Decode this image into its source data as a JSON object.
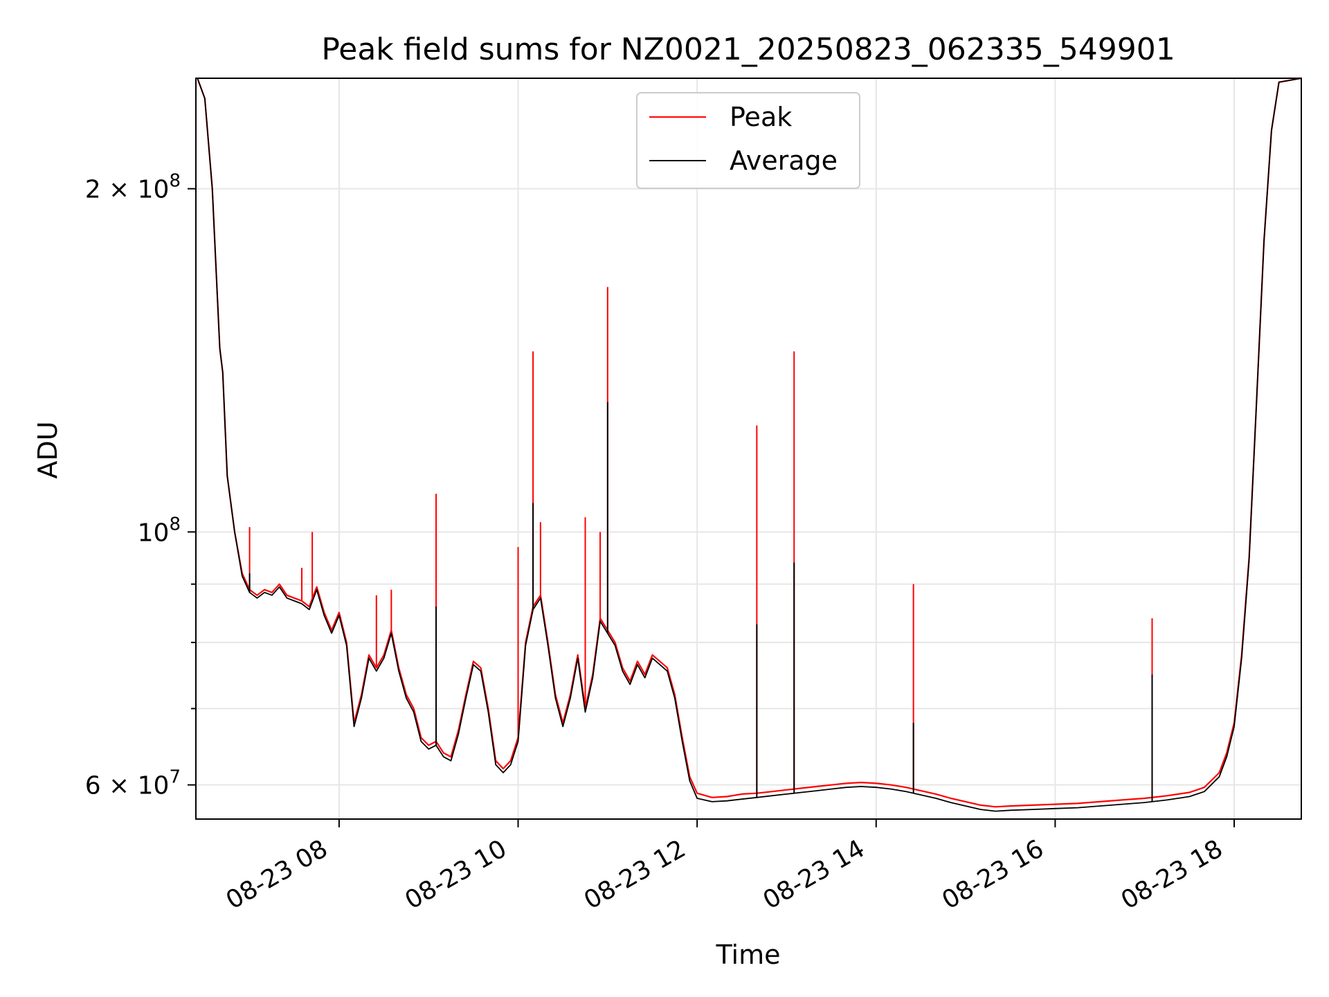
{
  "chart_data": {
    "type": "line",
    "title": "Peak field sums for NZ0021_20250823_062335_549901",
    "xlabel": "Time",
    "ylabel": "ADU",
    "y_scale": "log",
    "ylim": [
      56000000,
      250000000
    ],
    "xlim": [
      "08-23 06:24",
      "08-23 18:45"
    ],
    "grid": true,
    "legend_position": "top-center",
    "x_ticks": [
      {
        "t": "08-23 08:00",
        "label": "08-23 08"
      },
      {
        "t": "08-23 10:00",
        "label": "08-23 10"
      },
      {
        "t": "08-23 12:00",
        "label": "08-23 12"
      },
      {
        "t": "08-23 14:00",
        "label": "08-23 14"
      },
      {
        "t": "08-23 16:00",
        "label": "08-23 16"
      },
      {
        "t": "08-23 18:00",
        "label": "08-23 18"
      }
    ],
    "y_ticks": [
      {
        "v": 60000000,
        "base": "6",
        "exp": "7"
      },
      {
        "v": 100000000,
        "base": "",
        "exp": "8"
      },
      {
        "v": 200000000,
        "base": "2",
        "exp": "8"
      }
    ],
    "y_minor_ticks": [
      70000000,
      80000000,
      90000000
    ],
    "series": [
      {
        "name": "Peak",
        "color": "#ff0000",
        "points": [
          [
            "08-23 06:25",
            250000000
          ],
          [
            "08-23 06:30",
            240000000
          ],
          [
            "08-23 06:35",
            200000000
          ],
          [
            "08-23 06:40",
            145000000
          ],
          [
            "08-23 06:42",
            138000000
          ],
          [
            "08-23 06:45",
            112000000
          ],
          [
            "08-23 06:50",
            100000000
          ],
          [
            "08-23 06:55",
            92000000
          ],
          [
            "08-23 07:00",
            89000000
          ],
          [
            "08-23 07:05",
            88000000
          ],
          [
            "08-23 07:10",
            89000000
          ],
          [
            "08-23 07:15",
            88500000
          ],
          [
            "08-23 07:20",
            90000000
          ],
          [
            "08-23 07:25",
            88000000
          ],
          [
            "08-23 07:30",
            87500000
          ],
          [
            "08-23 07:35",
            87000000
          ],
          [
            "08-23 07:40",
            86000000
          ],
          [
            "08-23 07:45",
            89500000
          ],
          [
            "08-23 07:50",
            85000000
          ],
          [
            "08-23 07:55",
            82000000
          ],
          [
            "08-23 08:00",
            85000000
          ],
          [
            "08-23 08:05",
            80000000
          ],
          [
            "08-23 08:10",
            68000000
          ],
          [
            "08-23 08:15",
            72000000
          ],
          [
            "08-23 08:20",
            78000000
          ],
          [
            "08-23 08:25",
            76000000
          ],
          [
            "08-23 08:30",
            78000000
          ],
          [
            "08-23 08:35",
            82000000
          ],
          [
            "08-23 08:40",
            76000000
          ],
          [
            "08-23 08:45",
            72000000
          ],
          [
            "08-23 08:50",
            70000000
          ],
          [
            "08-23 08:55",
            66000000
          ],
          [
            "08-23 09:00",
            65000000
          ],
          [
            "08-23 09:05",
            65500000
          ],
          [
            "08-23 09:10",
            64000000
          ],
          [
            "08-23 09:15",
            63500000
          ],
          [
            "08-23 09:20",
            67000000
          ],
          [
            "08-23 09:25",
            72000000
          ],
          [
            "08-23 09:30",
            77000000
          ],
          [
            "08-23 09:35",
            76000000
          ],
          [
            "08-23 09:40",
            70000000
          ],
          [
            "08-23 09:45",
            63000000
          ],
          [
            "08-23 09:50",
            62000000
          ],
          [
            "08-23 09:55",
            63000000
          ],
          [
            "08-23 10:00",
            66000000
          ],
          [
            "08-23 10:05",
            80000000
          ],
          [
            "08-23 10:10",
            86000000
          ],
          [
            "08-23 10:15",
            88000000
          ],
          [
            "08-23 10:20",
            80000000
          ],
          [
            "08-23 10:25",
            72000000
          ],
          [
            "08-23 10:30",
            68000000
          ],
          [
            "08-23 10:35",
            72000000
          ],
          [
            "08-23 10:40",
            78000000
          ],
          [
            "08-23 10:45",
            70000000
          ],
          [
            "08-23 10:50",
            75000000
          ],
          [
            "08-23 10:55",
            84000000
          ],
          [
            "08-23 11:00",
            82000000
          ],
          [
            "08-23 11:05",
            80000000
          ],
          [
            "08-23 11:10",
            76000000
          ],
          [
            "08-23 11:15",
            74000000
          ],
          [
            "08-23 11:20",
            77000000
          ],
          [
            "08-23 11:25",
            75000000
          ],
          [
            "08-23 11:30",
            78000000
          ],
          [
            "08-23 11:35",
            77000000
          ],
          [
            "08-23 11:40",
            76000000
          ],
          [
            "08-23 11:45",
            72000000
          ],
          [
            "08-23 11:50",
            66000000
          ],
          [
            "08-23 11:55",
            61000000
          ],
          [
            "08-23 12:00",
            59000000
          ],
          [
            "08-23 12:10",
            58500000
          ],
          [
            "08-23 12:20",
            58600000
          ],
          [
            "08-23 12:30",
            58900000
          ],
          [
            "08-23 12:40",
            59000000
          ],
          [
            "08-23 12:50",
            59200000
          ],
          [
            "08-23 13:00",
            59400000
          ],
          [
            "08-23 13:10",
            59600000
          ],
          [
            "08-23 13:20",
            59800000
          ],
          [
            "08-23 13:30",
            60000000
          ],
          [
            "08-23 13:40",
            60200000
          ],
          [
            "08-23 13:50",
            60300000
          ],
          [
            "08-23 14:00",
            60200000
          ],
          [
            "08-23 14:10",
            60000000
          ],
          [
            "08-23 14:20",
            59700000
          ],
          [
            "08-23 14:30",
            59300000
          ],
          [
            "08-23 14:40",
            58900000
          ],
          [
            "08-23 14:50",
            58400000
          ],
          [
            "08-23 15:00",
            58000000
          ],
          [
            "08-23 15:10",
            57600000
          ],
          [
            "08-23 15:20",
            57400000
          ],
          [
            "08-23 15:30",
            57500000
          ],
          [
            "08-23 15:45",
            57600000
          ],
          [
            "08-23 16:00",
            57700000
          ],
          [
            "08-23 16:15",
            57800000
          ],
          [
            "08-23 16:30",
            58000000
          ],
          [
            "08-23 16:45",
            58200000
          ],
          [
            "08-23 17:00",
            58400000
          ],
          [
            "08-23 17:15",
            58700000
          ],
          [
            "08-23 17:30",
            59100000
          ],
          [
            "08-23 17:40",
            59700000
          ],
          [
            "08-23 17:50",
            61500000
          ],
          [
            "08-23 17:55",
            64000000
          ],
          [
            "08-23 18:00",
            68000000
          ],
          [
            "08-23 18:05",
            78000000
          ],
          [
            "08-23 18:10",
            95000000
          ],
          [
            "08-23 18:15",
            130000000
          ],
          [
            "08-23 18:20",
            180000000
          ],
          [
            "08-23 18:25",
            225000000
          ],
          [
            "08-23 18:30",
            248000000
          ],
          [
            "08-23 18:45",
            250000000
          ]
        ],
        "spikes": [
          [
            "08-23 07:00",
            101000000
          ],
          [
            "08-23 07:42",
            100000000
          ],
          [
            "08-23 07:35",
            93000000
          ],
          [
            "08-23 08:25",
            88000000
          ],
          [
            "08-23 08:35",
            89000000
          ],
          [
            "08-23 09:05",
            108000000
          ],
          [
            "08-23 10:00",
            97000000
          ],
          [
            "08-23 10:10",
            144000000
          ],
          [
            "08-23 10:15",
            102000000
          ],
          [
            "08-23 10:45",
            103000000
          ],
          [
            "08-23 10:55",
            100000000
          ],
          [
            "08-23 11:00",
            164000000
          ],
          [
            "08-23 12:40",
            124000000
          ],
          [
            "08-23 13:05",
            144000000
          ],
          [
            "08-23 14:25",
            90000000
          ],
          [
            "08-23 17:05",
            84000000
          ]
        ]
      },
      {
        "name": "Average",
        "color": "#000000",
        "points": [
          [
            "08-23 06:25",
            250000000
          ],
          [
            "08-23 06:30",
            240000000
          ],
          [
            "08-23 06:35",
            200000000
          ],
          [
            "08-23 06:40",
            145000000
          ],
          [
            "08-23 06:42",
            138000000
          ],
          [
            "08-23 06:45",
            112000000
          ],
          [
            "08-23 06:50",
            100000000
          ],
          [
            "08-23 06:55",
            91500000
          ],
          [
            "08-23 07:00",
            88500000
          ],
          [
            "08-23 07:05",
            87500000
          ],
          [
            "08-23 07:10",
            88500000
          ],
          [
            "08-23 07:15",
            88000000
          ],
          [
            "08-23 07:20",
            89500000
          ],
          [
            "08-23 07:25",
            87500000
          ],
          [
            "08-23 07:30",
            87000000
          ],
          [
            "08-23 07:35",
            86500000
          ],
          [
            "08-23 07:40",
            85500000
          ],
          [
            "08-23 07:45",
            89000000
          ],
          [
            "08-23 07:50",
            84500000
          ],
          [
            "08-23 07:55",
            81500000
          ],
          [
            "08-23 08:00",
            84500000
          ],
          [
            "08-23 08:05",
            79500000
          ],
          [
            "08-23 08:10",
            67500000
          ],
          [
            "08-23 08:15",
            71500000
          ],
          [
            "08-23 08:20",
            77500000
          ],
          [
            "08-23 08:25",
            75500000
          ],
          [
            "08-23 08:30",
            77500000
          ],
          [
            "08-23 08:35",
            81500000
          ],
          [
            "08-23 08:40",
            75500000
          ],
          [
            "08-23 08:45",
            71500000
          ],
          [
            "08-23 08:50",
            69500000
          ],
          [
            "08-23 08:55",
            65500000
          ],
          [
            "08-23 09:00",
            64500000
          ],
          [
            "08-23 09:05",
            65000000
          ],
          [
            "08-23 09:10",
            63500000
          ],
          [
            "08-23 09:15",
            63000000
          ],
          [
            "08-23 09:20",
            66500000
          ],
          [
            "08-23 09:25",
            71500000
          ],
          [
            "08-23 09:30",
            76500000
          ],
          [
            "08-23 09:35",
            75500000
          ],
          [
            "08-23 09:40",
            69500000
          ],
          [
            "08-23 09:45",
            62500000
          ],
          [
            "08-23 09:50",
            61500000
          ],
          [
            "08-23 09:55",
            62500000
          ],
          [
            "08-23 10:00",
            65500000
          ],
          [
            "08-23 10:05",
            79500000
          ],
          [
            "08-23 10:10",
            85500000
          ],
          [
            "08-23 10:15",
            87500000
          ],
          [
            "08-23 10:20",
            79500000
          ],
          [
            "08-23 10:25",
            71500000
          ],
          [
            "08-23 10:30",
            67500000
          ],
          [
            "08-23 10:35",
            71500000
          ],
          [
            "08-23 10:40",
            77500000
          ],
          [
            "08-23 10:45",
            69500000
          ],
          [
            "08-23 10:50",
            74500000
          ],
          [
            "08-23 10:55",
            83500000
          ],
          [
            "08-23 11:00",
            81500000
          ],
          [
            "08-23 11:05",
            79500000
          ],
          [
            "08-23 11:10",
            75500000
          ],
          [
            "08-23 11:15",
            73500000
          ],
          [
            "08-23 11:20",
            76500000
          ],
          [
            "08-23 11:25",
            74500000
          ],
          [
            "08-23 11:30",
            77500000
          ],
          [
            "08-23 11:35",
            76500000
          ],
          [
            "08-23 11:40",
            75500000
          ],
          [
            "08-23 11:45",
            71500000
          ],
          [
            "08-23 11:50",
            65500000
          ],
          [
            "08-23 11:55",
            60500000
          ],
          [
            "08-23 12:00",
            58400000
          ],
          [
            "08-23 12:10",
            58000000
          ],
          [
            "08-23 12:20",
            58100000
          ],
          [
            "08-23 12:30",
            58300000
          ],
          [
            "08-23 12:40",
            58500000
          ],
          [
            "08-23 12:50",
            58700000
          ],
          [
            "08-23 13:00",
            58900000
          ],
          [
            "08-23 13:10",
            59100000
          ],
          [
            "08-23 13:20",
            59300000
          ],
          [
            "08-23 13:30",
            59500000
          ],
          [
            "08-23 13:40",
            59700000
          ],
          [
            "08-23 13:50",
            59800000
          ],
          [
            "08-23 14:00",
            59700000
          ],
          [
            "08-23 14:10",
            59500000
          ],
          [
            "08-23 14:20",
            59200000
          ],
          [
            "08-23 14:30",
            58800000
          ],
          [
            "08-23 14:40",
            58400000
          ],
          [
            "08-23 14:50",
            57900000
          ],
          [
            "08-23 15:00",
            57500000
          ],
          [
            "08-23 15:10",
            57100000
          ],
          [
            "08-23 15:20",
            56900000
          ],
          [
            "08-23 15:30",
            57000000
          ],
          [
            "08-23 15:45",
            57100000
          ],
          [
            "08-23 16:00",
            57200000
          ],
          [
            "08-23 16:15",
            57300000
          ],
          [
            "08-23 16:30",
            57500000
          ],
          [
            "08-23 16:45",
            57700000
          ],
          [
            "08-23 17:00",
            57900000
          ],
          [
            "08-23 17:15",
            58200000
          ],
          [
            "08-23 17:30",
            58600000
          ],
          [
            "08-23 17:40",
            59200000
          ],
          [
            "08-23 17:50",
            61000000
          ],
          [
            "08-23 17:55",
            63500000
          ],
          [
            "08-23 18:00",
            67500000
          ],
          [
            "08-23 18:05",
            77500000
          ],
          [
            "08-23 18:10",
            94500000
          ],
          [
            "08-23 18:15",
            130000000
          ],
          [
            "08-23 18:20",
            180000000
          ],
          [
            "08-23 18:25",
            225000000
          ],
          [
            "08-23 18:30",
            248000000
          ],
          [
            "08-23 18:45",
            250000000
          ]
        ],
        "spikes": [
          [
            "08-23 07:00",
            92000000
          ],
          [
            "08-23 09:05",
            86000000
          ],
          [
            "08-23 10:10",
            106000000
          ],
          [
            "08-23 11:00",
            130000000
          ],
          [
            "08-23 12:40",
            83000000
          ],
          [
            "08-23 13:05",
            94000000
          ],
          [
            "08-23 14:25",
            68000000
          ],
          [
            "08-23 17:05",
            75000000
          ]
        ]
      }
    ]
  }
}
